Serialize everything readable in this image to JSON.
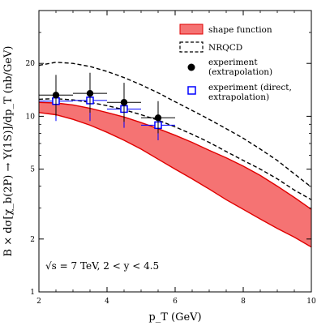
{
  "chart_data": {
    "type": "line",
    "xlabel": "p_T   (GeV)",
    "ylabel": "B × dσ[χ_b(2P) → Υ(1S)]/dp_T   (nb/GeV)",
    "xlim": [
      2,
      10
    ],
    "ylim": [
      1,
      40
    ],
    "y_scale": "log",
    "grid": false,
    "legend_position": "top-right",
    "x_ticks": [
      2,
      4,
      6,
      8,
      10
    ],
    "y_ticks": [
      1,
      2,
      5,
      10,
      20
    ],
    "annotation": "√s = 7 TeV, 2 < y < 4.5",
    "colors": {
      "band_fill": "#f57373",
      "band_edge": "#e00000",
      "nrqcd": "#000000",
      "experiment": "#000000",
      "direct": "#0000ff"
    },
    "legend": [
      {
        "label": "shape function",
        "marker": "band"
      },
      {
        "label": "NRQCD",
        "marker": "dashed-box"
      },
      {
        "label": "experiment",
        "label2": "(extrapolation)",
        "marker": "filled-circle"
      },
      {
        "label": "experiment (direct,",
        "label2": "extrapolation)",
        "marker": "open-square"
      }
    ],
    "series": [
      {
        "name": "shape function",
        "kind": "band",
        "x": [
          2,
          2.5,
          3,
          3.5,
          4,
          4.5,
          5,
          5.5,
          6,
          6.5,
          7,
          7.5,
          8,
          8.5,
          9,
          9.5,
          10
        ],
        "lower": [
          10.5,
          10.2,
          9.6,
          8.9,
          8.1,
          7.3,
          6.5,
          5.7,
          5.0,
          4.4,
          3.85,
          3.35,
          2.95,
          2.6,
          2.3,
          2.05,
          1.8
        ],
        "upper": [
          12.0,
          11.9,
          11.6,
          11.1,
          10.5,
          9.9,
          9.2,
          8.5,
          7.8,
          7.1,
          6.4,
          5.8,
          5.2,
          4.6,
          4.0,
          3.45,
          2.95
        ]
      },
      {
        "name": "NRQCD",
        "kind": "band-dashed",
        "x": [
          2,
          2.5,
          3,
          3.5,
          4,
          4.5,
          5,
          5.5,
          6,
          6.5,
          7,
          7.5,
          8,
          8.5,
          9,
          9.5,
          10
        ],
        "lower": [
          12.5,
          12.6,
          12.4,
          12.0,
          11.5,
          10.9,
          10.2,
          9.5,
          8.7,
          7.9,
          7.1,
          6.3,
          5.6,
          5.0,
          4.4,
          3.8,
          3.35
        ],
        "upper": [
          19.5,
          20.3,
          20.0,
          19.2,
          18.0,
          16.6,
          15.1,
          13.6,
          12.1,
          10.8,
          9.6,
          8.5,
          7.5,
          6.5,
          5.6,
          4.7,
          3.95
        ]
      },
      {
        "name": "experiment",
        "kind": "points",
        "x": [
          2.5,
          3.5,
          4.5,
          5.5
        ],
        "y": [
          13.2,
          13.5,
          12.0,
          9.8
        ],
        "y_err_low": [
          3.2,
          3.0,
          2.7,
          1.8
        ],
        "y_err_high": [
          4.0,
          4.2,
          3.5,
          2.4
        ],
        "x_err": [
          0.5,
          0.5,
          0.5,
          0.5
        ]
      },
      {
        "name": "experiment (direct, extrapolation)",
        "kind": "points",
        "x": [
          2.5,
          3.5,
          4.5,
          5.5
        ],
        "y": [
          12.2,
          12.3,
          11.0,
          8.9
        ],
        "y_err_low": [
          2.8,
          2.9,
          2.4,
          1.6
        ],
        "y_err_high": [
          3.8,
          3.9,
          3.3,
          2.2
        ],
        "x_err": [
          0.5,
          0.5,
          0.5,
          0.5
        ]
      }
    ]
  }
}
